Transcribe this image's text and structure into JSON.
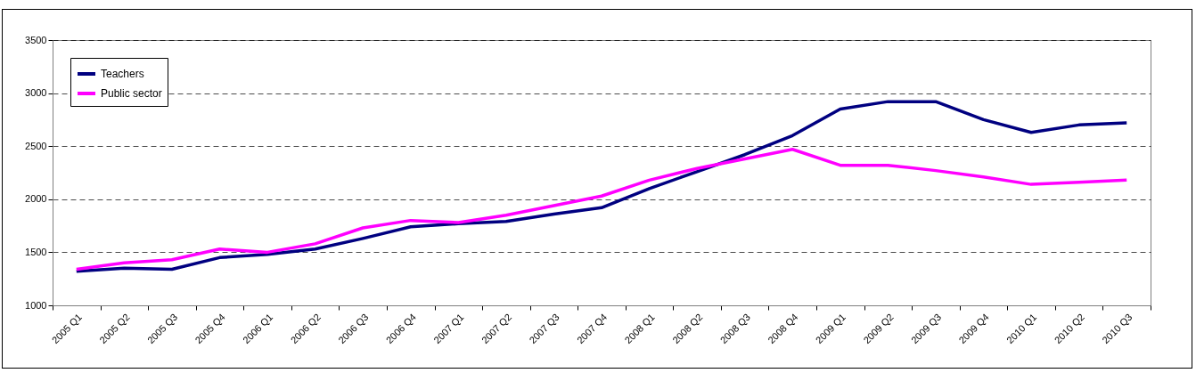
{
  "chart_data": {
    "type": "line",
    "categories": [
      "2005 Q1",
      "2005 Q2",
      "2005 Q3",
      "2005 Q4",
      "2006 Q1",
      "2006 Q2",
      "2006 Q3",
      "2006 Q4",
      "2007 Q1",
      "2007 Q2",
      "2007 Q3",
      "2007 Q4",
      "2008 Q1",
      "2008 Q2",
      "2008 Q3",
      "2008 Q4",
      "2009 Q1",
      "2009 Q2",
      "2009 Q3",
      "2009 Q4",
      "2010 Q1",
      "2010 Q2",
      "2010 Q3"
    ],
    "series": [
      {
        "name": "Teachers",
        "color": "#000080",
        "values": [
          1320,
          1350,
          1340,
          1450,
          1480,
          1530,
          1630,
          1740,
          1770,
          1790,
          1860,
          1920,
          2100,
          2260,
          2420,
          2600,
          2850,
          2920,
          2920,
          2750,
          2630,
          2700,
          2720
        ]
      },
      {
        "name": "Public sector",
        "color": "#ff00ff",
        "values": [
          1340,
          1400,
          1430,
          1530,
          1500,
          1580,
          1730,
          1800,
          1780,
          1850,
          1940,
          2030,
          2180,
          2290,
          2380,
          2470,
          2320,
          2320,
          2270,
          2210,
          2140,
          2160,
          2180
        ]
      }
    ],
    "ylim": [
      1000,
      3500
    ],
    "yticks": [
      1000,
      1500,
      2000,
      2500,
      3000,
      3500
    ],
    "grid": "y",
    "legend": "top left",
    "line_style": "solid",
    "marker": "none"
  }
}
